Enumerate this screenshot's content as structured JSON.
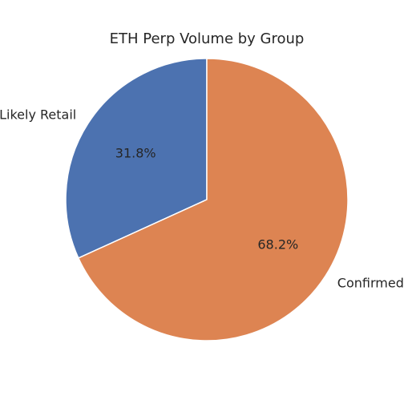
{
  "chart_data": {
    "type": "pie",
    "title": "ETH Perp Volume by Group",
    "slices": [
      {
        "label": "Likely Retail",
        "value": 31.8,
        "pct_label": "31.8%",
        "color": "#4c72b0"
      },
      {
        "label": "Confirmed",
        "value": 68.2,
        "pct_label": "68.2%",
        "color": "#dd8452"
      }
    ],
    "start_angle_deg": 90,
    "direction": "counterclockwise",
    "legend": "none"
  }
}
